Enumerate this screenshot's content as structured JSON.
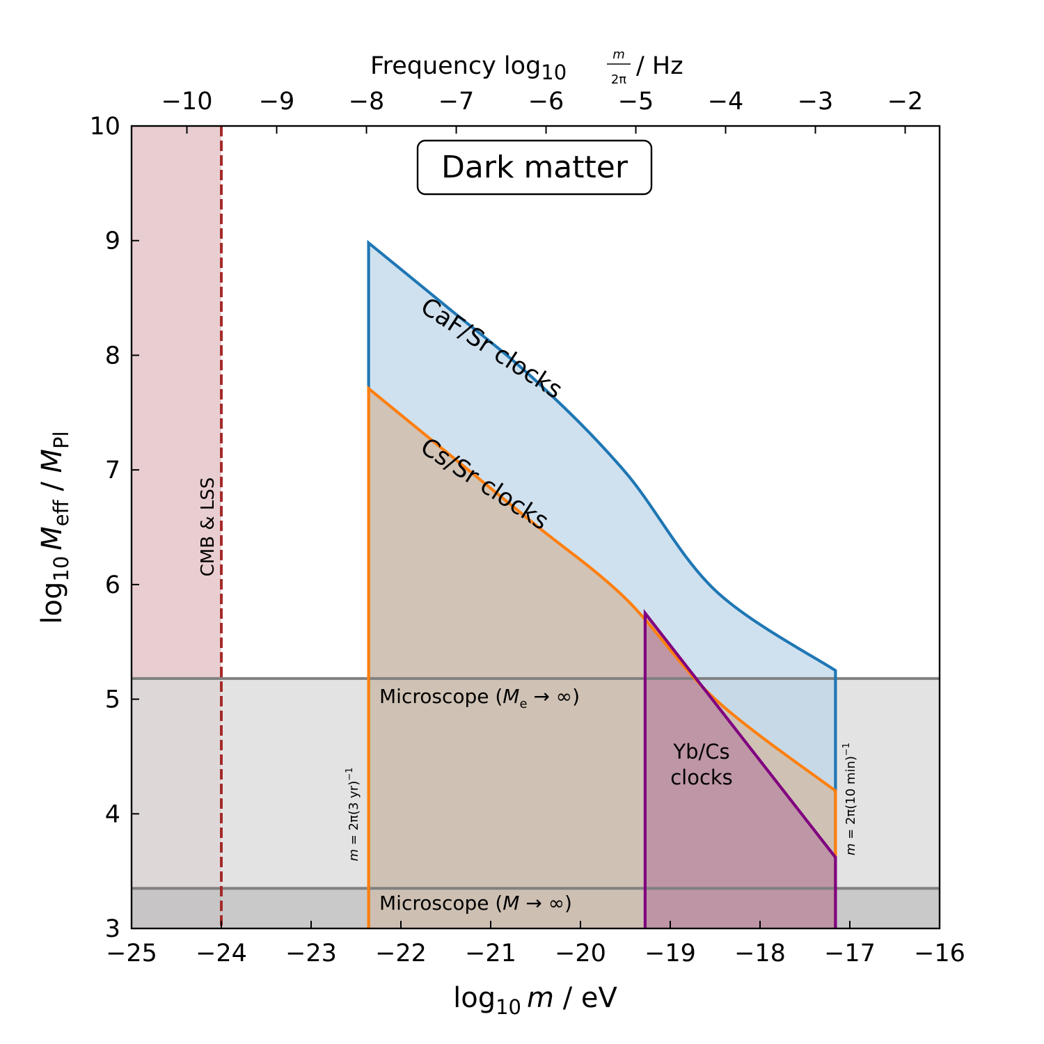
{
  "chart_data": {
    "type": "area",
    "title_box": "Dark matter",
    "xlabel": {
      "prefix": "log",
      "sub": "10",
      "var": "m",
      "suffix": " / eV"
    },
    "ylabel": {
      "prefix": "log",
      "sub": "10",
      "var": "M",
      "var_sub": "eff",
      "sep": " / ",
      "var2": "M",
      "var2_sub": "Pl"
    },
    "top_xlabel": {
      "text": "Frequency log",
      "sub": "10",
      "frac_num": "m",
      "frac_den": "2π",
      "suffix": " / Hz"
    },
    "xlim": [
      -25,
      -16
    ],
    "ylim": [
      3,
      10
    ],
    "x_ticks": [
      -25,
      -24,
      -23,
      -22,
      -21,
      -20,
      -19,
      -18,
      -17,
      -16
    ],
    "x_tick_labels": [
      "−25",
      "−24",
      "−23",
      "−22",
      "−21",
      "−20",
      "−19",
      "−18",
      "−17",
      "−16"
    ],
    "y_ticks": [
      3,
      4,
      5,
      6,
      7,
      8,
      9,
      10
    ],
    "y_tick_labels": [
      "3",
      "4",
      "5",
      "6",
      "7",
      "8",
      "9",
      "10"
    ],
    "top_ticks": [
      -10,
      -9,
      -8,
      -7,
      -6,
      -5,
      -4,
      -3,
      -2
    ],
    "top_tick_labels": [
      "−10",
      "−9",
      "−8",
      "−7",
      "−6",
      "−5",
      "−4",
      "−3",
      "−2"
    ],
    "colors": {
      "cmb_fill": "#e2bec1",
      "cmb_line": "#a52a2a",
      "microscope_fill_upper": "#d9d9d9",
      "microscope_fill_lower": "#bdbdbd",
      "microscope_line": "#808080",
      "caf": "#1f77b4",
      "caf_fill": "#bad4e8",
      "cs": "#ff7f0e",
      "cs_fill": "#d1bba7",
      "yb": "#800080",
      "yb_fill": "#b57e9c"
    },
    "series": [
      {
        "name": "CaF/Sr clocks",
        "x": [
          -22.36,
          -22.0,
          -21.5,
          -21.0,
          -20.5,
          -20.0,
          -19.5,
          -19.0,
          -18.5,
          -18.0,
          -17.5,
          -17.16
        ],
        "y": [
          8.98,
          8.74,
          8.43,
          8.12,
          7.78,
          7.42,
          6.98,
          6.48,
          5.95,
          5.42,
          4.9,
          4.52
        ]
      },
      {
        "name": "Cs/Sr clocks",
        "x": [
          -22.36,
          -22.0,
          -21.5,
          -21.0,
          -20.5,
          -20.0,
          -19.5,
          -19.0,
          -18.5,
          -18.0,
          -17.5,
          -17.16
        ],
        "y": [
          7.71,
          7.47,
          7.16,
          6.84,
          6.52,
          6.22,
          5.88,
          5.46,
          5.0,
          4.55,
          4.1,
          3.8
        ]
      },
      {
        "name": "Yb/Cs clocks",
        "x": [
          -19.28,
          -17.16
        ],
        "y": [
          5.75,
          3.62
        ]
      }
    ],
    "caf_top_edge": {
      "x": [
        -22.36,
        -21.5,
        -20.5,
        -19.5,
        -18.5,
        -17.16
      ],
      "y": [
        8.98,
        8.43,
        7.78,
        6.98,
        5.95,
        5.25
      ]
    },
    "cs_edge": {
      "x": [
        -22.36,
        -21.5,
        -20.5,
        -19.5,
        -18.5,
        -17.16
      ],
      "y": [
        7.71,
        7.16,
        6.52,
        5.88,
        5.0,
        4.2
      ]
    },
    "cmb_limit_x": -24.0,
    "microscope_upper_y": 5.18,
    "microscope_lower_y": 3.35,
    "low_mass_cut_x": -22.36,
    "high_mass_cut_x": -17.16,
    "annotations": {
      "cmb": "CMB & LSS",
      "microscope_e": {
        "pre": "Microscope (",
        "var": "M",
        "sub": "e",
        "post": " → ∞)"
      },
      "microscope": {
        "pre": "Microscope (",
        "var": "M",
        "post": " → ∞)"
      },
      "low_cut": {
        "pre": "m",
        "mid": " = 2π(3 yr)",
        "sup": "−1"
      },
      "high_cut": {
        "pre": "m",
        "mid": " = 2π(10 min)",
        "sup": "−1"
      },
      "caf": "CaF/Sr clocks",
      "cs": "Cs/Sr clocks",
      "yb_line1": "Yb/Cs",
      "yb_line2": "clocks"
    }
  }
}
